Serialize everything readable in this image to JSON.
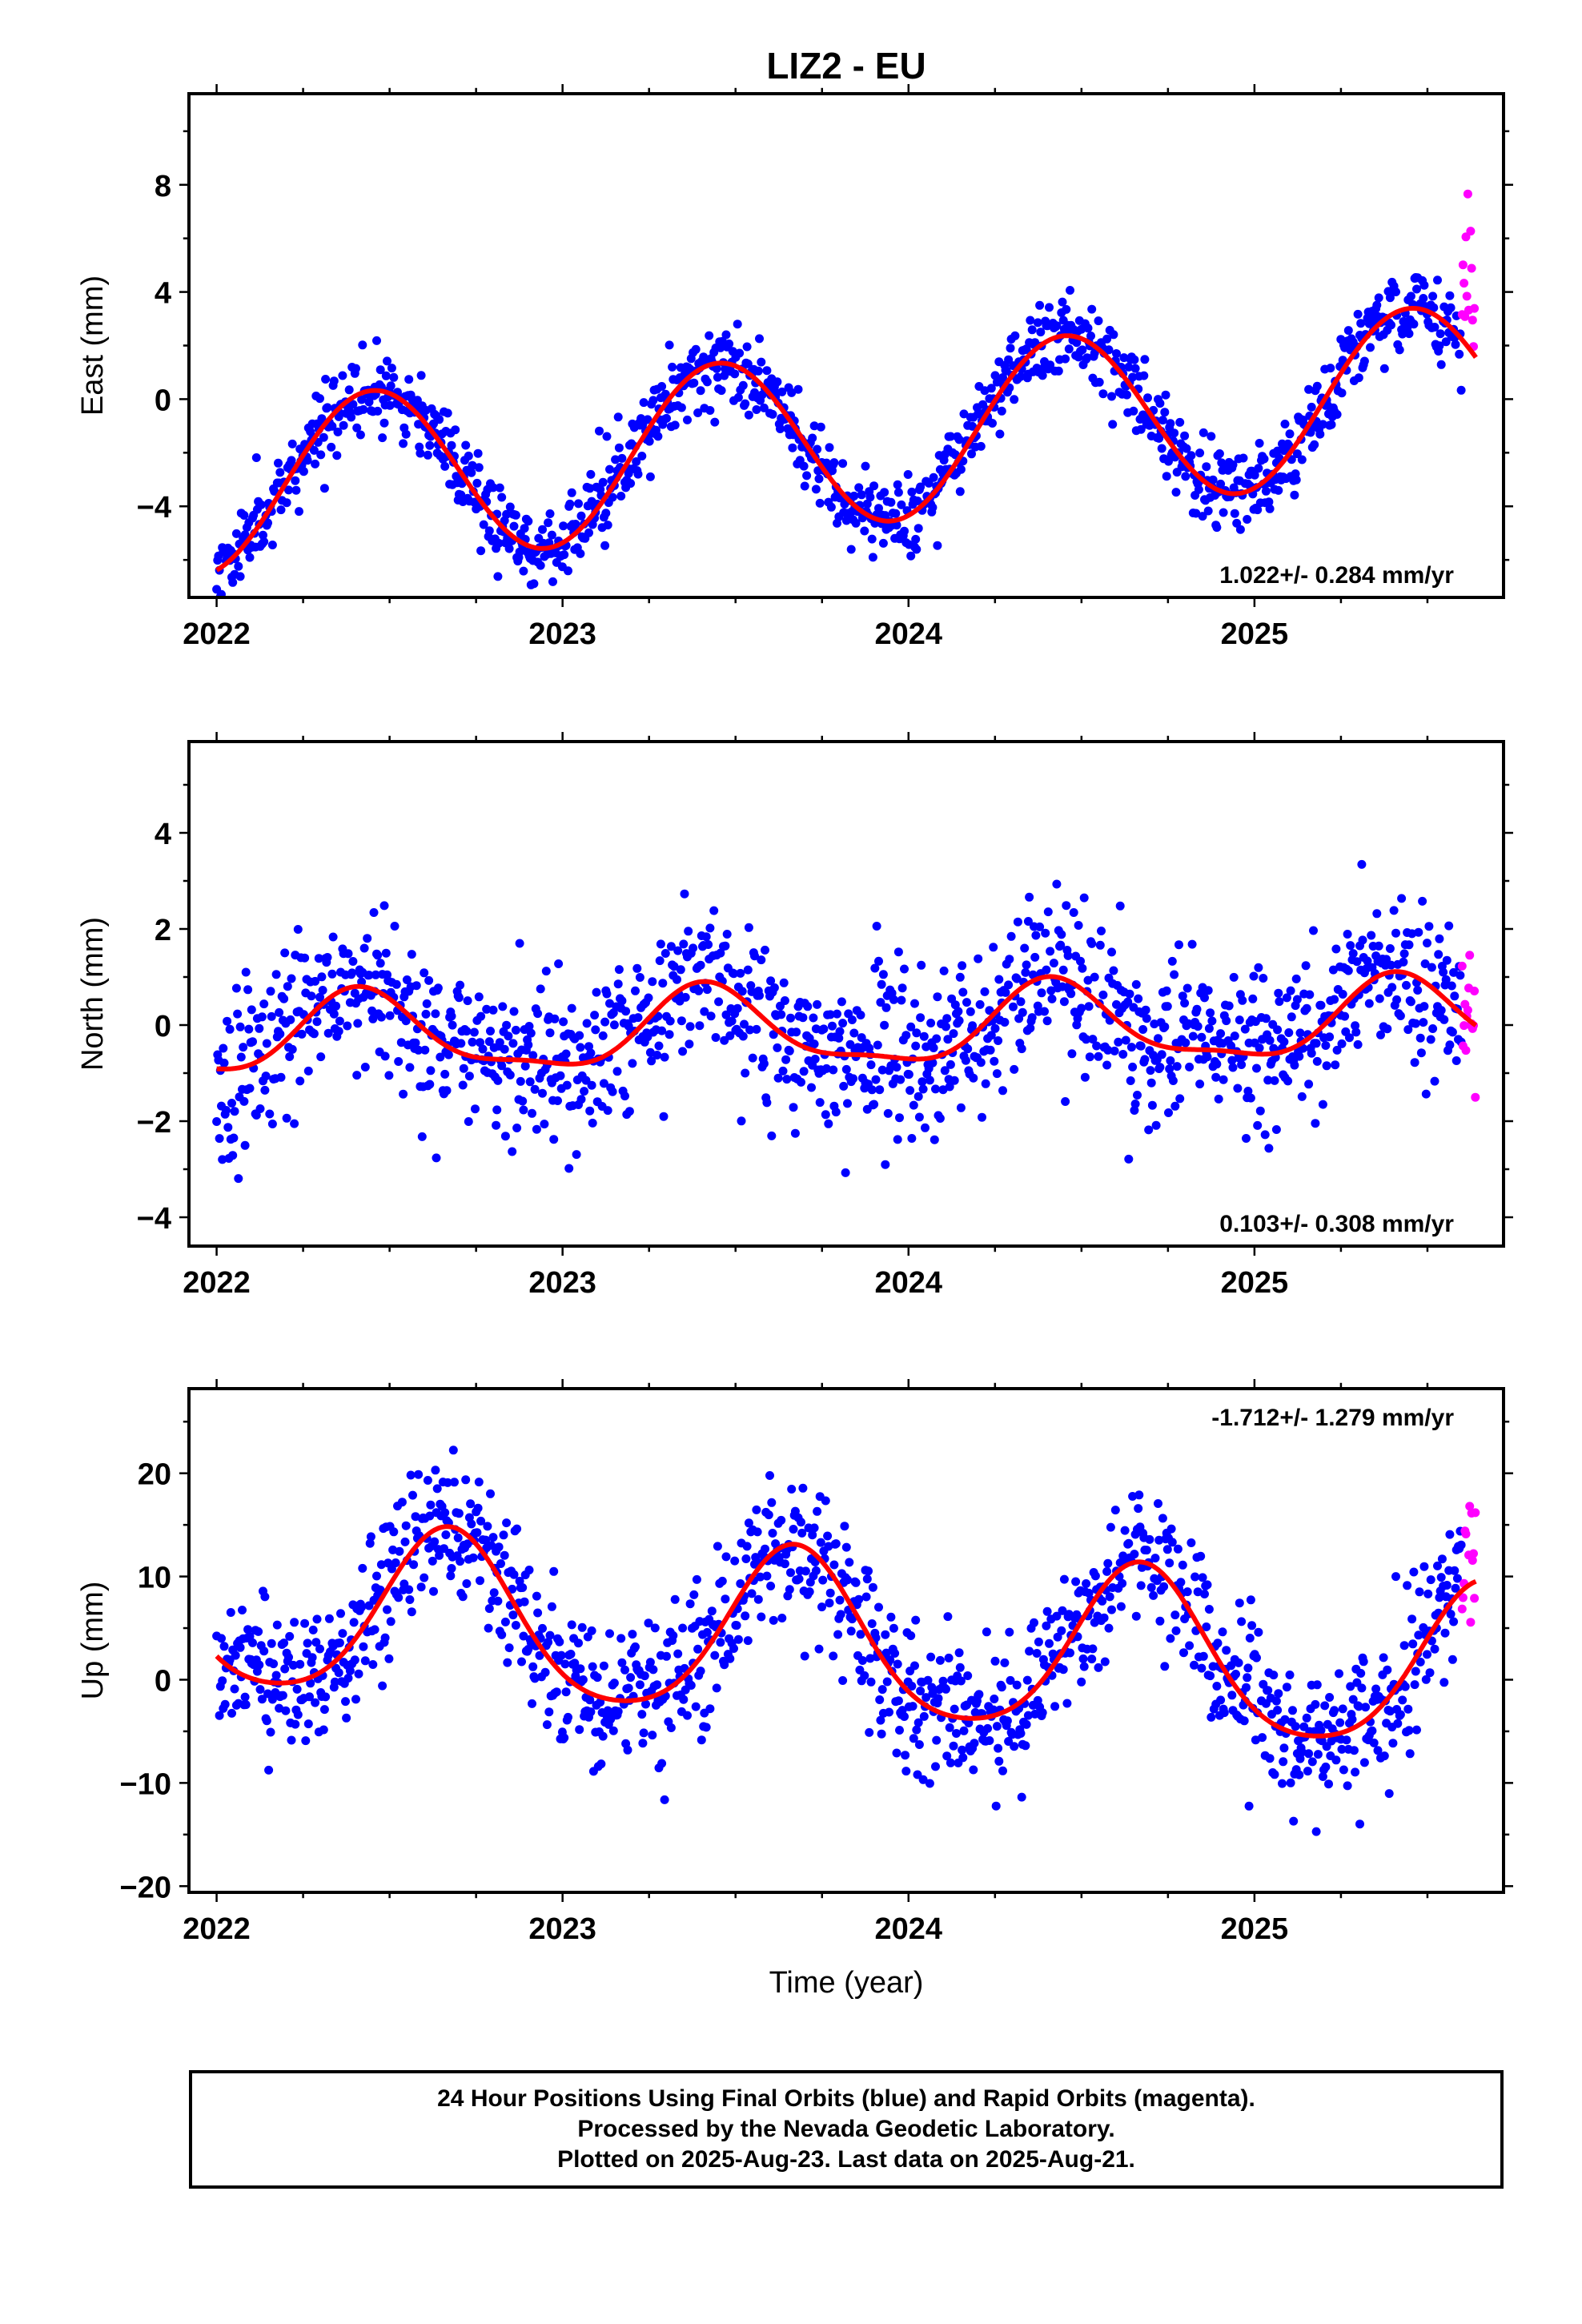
{
  "chart_data": {
    "type": "scatter",
    "title": "LIZ2 - EU",
    "xlabel": "Time (year)",
    "xlim": [
      2021.92,
      2025.72
    ],
    "xticks": [
      2022,
      2023,
      2024,
      2025
    ],
    "xtick_labels": [
      "2022",
      "2023",
      "2024",
      "2025"
    ],
    "colors": {
      "final": "#0000ff",
      "rapid": "#ff00ff",
      "model": "#ff0000"
    },
    "final_data_end": 2025.6,
    "data_end": 2025.64,
    "panels": [
      {
        "name": "east",
        "ylabel": "East (mm)",
        "ylim": [
          -7.4,
          11.4
        ],
        "yticks": [
          -4,
          0,
          4,
          8
        ],
        "rate_text": "1.022+/- 0.284 mm/yr",
        "rate_position": "bottom-right",
        "model": {
          "offset": -1.5,
          "rate": 1.022,
          "amplitude": 3.2,
          "peak": 0.45,
          "amplitude2": 0.0,
          "peak2": 0.0
        },
        "scatter_sd": 0.75,
        "rapid_extra": 3.5,
        "seed": 11
      },
      {
        "name": "north",
        "ylabel": "North (mm)",
        "ylim": [
          -4.6,
          5.9
        ],
        "yticks": [
          -4,
          -2,
          0,
          2,
          4
        ],
        "rate_text": "0.103+/- 0.308 mm/yr",
        "rate_position": "bottom-right",
        "model": {
          "offset": -0.1,
          "rate": 0.103,
          "amplitude": 0.8,
          "peak": 0.42,
          "amplitude2": 0.25,
          "peak2": 0.4
        },
        "scatter_sd": 0.85,
        "rapid_extra": 0.0,
        "seed": 23
      },
      {
        "name": "up",
        "ylabel": "Up (mm)",
        "ylim": [
          -20.6,
          28.2
        ],
        "yticks": [
          -20,
          -10,
          0,
          10,
          20
        ],
        "rate_text": "-1.712+/- 1.279 mm/yr",
        "rate_position": "top-right",
        "model": {
          "offset": 3.7,
          "rate": -1.712,
          "amplitude": 8.0,
          "peak": 0.67,
          "amplitude2": 1.2,
          "peak2": 0.17
        },
        "scatter_sd": 3.6,
        "rapid_extra": 5.0,
        "seed": 37
      }
    ]
  },
  "footer": {
    "line1": "24 Hour Positions Using Final Orbits (blue) and Rapid Orbits (magenta).",
    "line2": "Processed by the Nevada Geodetic Laboratory.",
    "line3": "Plotted on 2025-Aug-23. Last data on 2025-Aug-21."
  }
}
